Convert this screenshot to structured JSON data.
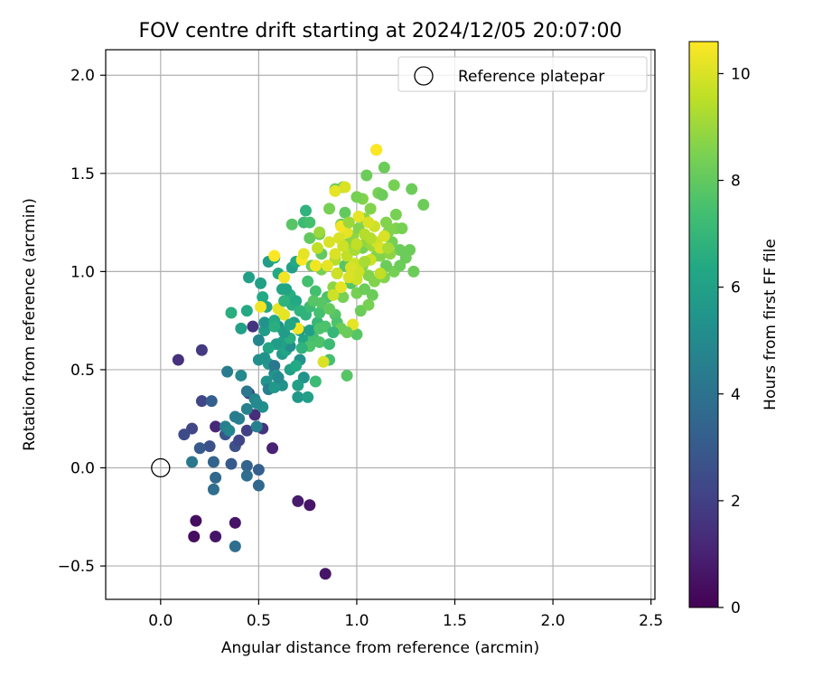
{
  "chart_data": {
    "type": "scatter",
    "title": "FOV centre drift starting at 2024/12/05 20:07:00",
    "xlabel": "Angular distance from reference (arcmin)",
    "ylabel": "Rotation from reference (arcmin)",
    "xlim": [
      -0.28,
      2.52
    ],
    "ylim": [
      -0.67,
      2.13
    ],
    "xticks": [
      0.0,
      0.5,
      1.0,
      1.5,
      2.0,
      2.5
    ],
    "xtick_labels": [
      "0.0",
      "0.5",
      "1.0",
      "1.5",
      "2.0",
      "2.5"
    ],
    "yticks": [
      -0.5,
      0.0,
      0.5,
      1.0,
      1.5,
      2.0
    ],
    "ytick_labels": [
      "−0.5",
      "0.0",
      "0.5",
      "1.0",
      "1.5",
      "2.0"
    ],
    "grid": true,
    "legend": {
      "placement": "top-right",
      "entries": [
        "Reference platepar"
      ]
    },
    "reference_point": {
      "x": 0.0,
      "y": 0.0,
      "marker": "open-circle"
    },
    "colorbar": {
      "label": "Hours from first FF file",
      "range": [
        0,
        10.6
      ],
      "ticks": [
        0,
        2,
        4,
        6,
        8,
        10
      ],
      "tick_labels": [
        "0",
        "2",
        "4",
        "6",
        "8",
        "10"
      ],
      "colormap": "viridis",
      "position": "right"
    },
    "series": [
      {
        "points": [
          [
            0.09,
            0.55,
            1.5
          ],
          [
            0.21,
            0.6,
            1.8
          ],
          [
            0.16,
            0.2,
            2.2
          ],
          [
            0.21,
            0.34,
            2.2
          ],
          [
            0.12,
            0.17,
            2.4
          ],
          [
            0.28,
            0.21,
            1.2
          ],
          [
            0.25,
            0.11,
            2.6
          ],
          [
            0.2,
            0.1,
            3.0
          ],
          [
            0.26,
            0.34,
            3.2
          ],
          [
            0.33,
            0.17,
            2.8
          ],
          [
            0.27,
            0.03,
            3.4
          ],
          [
            0.28,
            -0.05,
            3.6
          ],
          [
            0.27,
            -0.11,
            3.8
          ],
          [
            0.36,
            0.02,
            3.0
          ],
          [
            0.16,
            0.03,
            4.2
          ],
          [
            0.38,
            -0.4,
            3.8
          ],
          [
            0.38,
            0.11,
            2.6
          ],
          [
            0.4,
            0.14,
            2.2
          ],
          [
            0.44,
            0.01,
            3.4
          ],
          [
            0.44,
            -0.04,
            3.8
          ],
          [
            0.5,
            -0.01,
            3.2
          ],
          [
            0.5,
            -0.09,
            3.6
          ],
          [
            0.57,
            0.1,
            1.0
          ],
          [
            0.52,
            0.2,
            1.6
          ],
          [
            0.4,
            0.25,
            4.6
          ],
          [
            0.44,
            0.19,
            2.0
          ],
          [
            0.48,
            0.27,
            1.4
          ],
          [
            0.45,
            0.38,
            1.8
          ],
          [
            0.47,
            0.72,
            1.6
          ],
          [
            0.33,
            0.21,
            4.6
          ],
          [
            0.35,
            0.19,
            4.8
          ],
          [
            0.38,
            0.26,
            4.4
          ],
          [
            0.44,
            0.3,
            4.6
          ],
          [
            0.44,
            0.39,
            4.2
          ],
          [
            0.34,
            0.49,
            4.4
          ],
          [
            0.41,
            0.47,
            5.0
          ],
          [
            0.49,
            0.21,
            4.6
          ],
          [
            0.48,
            0.35,
            4.8
          ],
          [
            0.52,
            0.31,
            5.2
          ],
          [
            0.58,
            0.48,
            5.0
          ],
          [
            0.55,
            0.53,
            5.6
          ],
          [
            0.58,
            0.52,
            4.2
          ],
          [
            0.5,
            0.55,
            5.2
          ],
          [
            0.54,
            0.44,
            5.4
          ],
          [
            0.55,
            0.4,
            4.6
          ],
          [
            0.5,
            0.65,
            4.8
          ],
          [
            0.53,
            0.7,
            5.8
          ],
          [
            0.59,
            0.47,
            5.6
          ],
          [
            0.49,
            0.33,
            5.0
          ],
          [
            0.62,
            0.42,
            5.4
          ],
          [
            0.62,
            0.58,
            5.8
          ],
          [
            0.66,
            0.5,
            6.0
          ],
          [
            0.64,
            0.6,
            6.2
          ],
          [
            0.66,
            0.62,
            5.2
          ],
          [
            0.71,
            0.55,
            5.4
          ],
          [
            0.6,
            0.72,
            5.4
          ],
          [
            0.71,
            0.7,
            5.8
          ],
          [
            0.73,
            0.65,
            6.2
          ],
          [
            0.73,
            0.46,
            5.4
          ],
          [
            0.7,
            0.42,
            6.0
          ],
          [
            0.7,
            0.36,
            5.6
          ],
          [
            0.75,
            0.36,
            6.0
          ],
          [
            0.79,
            0.44,
            7.2
          ],
          [
            0.44,
            0.8,
            6.4
          ],
          [
            0.36,
            0.79,
            6.6
          ],
          [
            0.41,
            0.71,
            6.0
          ],
          [
            0.45,
            0.97,
            6.0
          ],
          [
            0.51,
            0.94,
            6.0
          ],
          [
            0.52,
            0.87,
            6.4
          ],
          [
            0.54,
            0.82,
            6.2
          ],
          [
            0.53,
            0.74,
            5.4
          ],
          [
            0.58,
            0.75,
            6.4
          ],
          [
            0.55,
            1.05,
            5.8
          ],
          [
            0.58,
            1.07,
            6.4
          ],
          [
            0.6,
            0.99,
            6.4
          ],
          [
            0.62,
            0.91,
            6.2
          ],
          [
            0.66,
            0.88,
            6.6
          ],
          [
            0.67,
            0.83,
            6.6
          ],
          [
            0.67,
            1.02,
            6.0
          ],
          [
            0.69,
            1.05,
            6.4
          ],
          [
            0.62,
            0.64,
            6.0
          ],
          [
            0.66,
            0.66,
            6.6
          ],
          [
            0.68,
            0.74,
            6.0
          ],
          [
            0.74,
            0.78,
            6.8
          ],
          [
            0.76,
            0.82,
            7.2
          ],
          [
            0.8,
            0.74,
            7.0
          ],
          [
            0.78,
            0.66,
            7.4
          ],
          [
            0.76,
            0.62,
            7.6
          ],
          [
            0.81,
            0.64,
            7.6
          ],
          [
            0.74,
            1.31,
            6.8
          ],
          [
            0.67,
            1.24,
            7.8
          ],
          [
            0.73,
            1.25,
            7.2
          ],
          [
            0.76,
            1.17,
            8.0
          ],
          [
            0.81,
            1.19,
            8.2
          ],
          [
            0.77,
            1.03,
            8.2
          ],
          [
            0.82,
            1.09,
            8.0
          ],
          [
            0.82,
            1.01,
            8.4
          ],
          [
            0.79,
            0.9,
            7.4
          ],
          [
            0.75,
            0.95,
            7.4
          ],
          [
            0.85,
            0.87,
            7.6
          ],
          [
            0.84,
            0.72,
            7.6
          ],
          [
            0.89,
            0.78,
            7.8
          ],
          [
            0.9,
            0.74,
            7.6
          ],
          [
            0.92,
            0.71,
            8.2
          ],
          [
            0.95,
            0.47,
            7.8
          ],
          [
            0.86,
            0.55,
            7.4
          ],
          [
            0.88,
            0.69,
            7.0
          ],
          [
            0.93,
            0.87,
            8.4
          ],
          [
            0.88,
            0.92,
            8.8
          ],
          [
            0.9,
            0.99,
            8.2
          ],
          [
            0.94,
            1.03,
            7.8
          ],
          [
            0.97,
            0.94,
            7.8
          ],
          [
            1.0,
            0.68,
            7.8
          ],
          [
            1.02,
            0.8,
            8.2
          ],
          [
            1.0,
            0.89,
            8.4
          ],
          [
            1.04,
            0.91,
            8.2
          ],
          [
            1.08,
            0.88,
            8.2
          ],
          [
            1.03,
            1.03,
            8.6
          ],
          [
            1.06,
            0.98,
            8.6
          ],
          [
            1.1,
            1.08,
            8.6
          ],
          [
            0.95,
            1.14,
            8.8
          ],
          [
            0.98,
            1.18,
            8.8
          ],
          [
            1.01,
            1.22,
            8.6
          ],
          [
            1.03,
            1.12,
            8.4
          ],
          [
            1.05,
            1.15,
            8.8
          ],
          [
            1.08,
            1.13,
            9.0
          ],
          [
            0.92,
            1.24,
            8.2
          ],
          [
            0.94,
            1.3,
            8.0
          ],
          [
            1.01,
            1.28,
            9.4
          ],
          [
            1.04,
            1.27,
            8.8
          ],
          [
            1.07,
            1.32,
            8.6
          ],
          [
            1.03,
            1.37,
            8.6
          ],
          [
            1.0,
            1.38,
            8.4
          ],
          [
            1.05,
            1.49,
            8.2
          ],
          [
            1.11,
            1.4,
            8.4
          ],
          [
            1.13,
            1.39,
            8.2
          ],
          [
            1.1,
            1.62,
            8.4
          ],
          [
            1.14,
            1.53,
            8.2
          ],
          [
            1.16,
            1.2,
            8.6
          ],
          [
            1.18,
            1.15,
            8.4
          ],
          [
            1.2,
            1.22,
            8.6
          ],
          [
            1.22,
            1.11,
            8.2
          ],
          [
            1.25,
            1.07,
            8.2
          ],
          [
            1.19,
            1.0,
            8.4
          ],
          [
            1.15,
            1.03,
            8.2
          ],
          [
            1.12,
            1.08,
            8.6
          ],
          [
            1.22,
            1.03,
            8.2
          ],
          [
            1.2,
            1.29,
            8.4
          ],
          [
            1.23,
            1.22,
            8.4
          ],
          [
            1.27,
            1.11,
            8.2
          ],
          [
            1.29,
            1.0,
            8.2
          ],
          [
            1.28,
            1.42,
            8.2
          ],
          [
            1.34,
            1.34,
            8.2
          ],
          [
            1.19,
            1.44,
            8.4
          ],
          [
            0.93,
            1.43,
            8.4
          ],
          [
            0.89,
            1.42,
            8.2
          ],
          [
            0.76,
            1.25,
            7.4
          ],
          [
            0.86,
            1.32,
            8.4
          ],
          [
            0.89,
            1.06,
            9.4
          ],
          [
            0.95,
            1.08,
            9.6
          ],
          [
            0.99,
            1.04,
            9.8
          ],
          [
            1.01,
            1.0,
            9.8
          ],
          [
            1.07,
            1.06,
            9.8
          ],
          [
            1.1,
            1.15,
            9.8
          ],
          [
            1.12,
            1.12,
            10.0
          ],
          [
            1.14,
            1.18,
            10.0
          ],
          [
            1.09,
            1.23,
            9.8
          ],
          [
            1.06,
            1.25,
            10.0
          ],
          [
            0.95,
            1.2,
            10.2
          ],
          [
            0.91,
            1.17,
            10.0
          ],
          [
            0.86,
            1.15,
            10.0
          ],
          [
            0.8,
            1.12,
            9.6
          ],
          [
            0.85,
            1.03,
            10.2
          ],
          [
            0.89,
            1.09,
            10.0
          ],
          [
            0.93,
            1.13,
            9.8
          ],
          [
            0.97,
            1.02,
            10.0
          ],
          [
            1.0,
            0.96,
            9.8
          ],
          [
            0.96,
            0.97,
            10.0
          ],
          [
            0.92,
            0.92,
            10.2
          ],
          [
            0.9,
            0.99,
            9.8
          ],
          [
            0.88,
            0.88,
            9.8
          ],
          [
            0.92,
            1.23,
            10.4
          ],
          [
            1.01,
            1.28,
            10.2
          ],
          [
            0.89,
            1.41,
            10.2
          ],
          [
            0.94,
            1.43,
            10.0
          ],
          [
            1.1,
            1.62,
            10.6
          ],
          [
            0.72,
            1.06,
            10.6
          ],
          [
            0.73,
            1.09,
            10.2
          ],
          [
            0.79,
            1.03,
            10.4
          ],
          [
            0.58,
            1.08,
            10.6
          ],
          [
            0.63,
            0.97,
            10.4
          ],
          [
            0.51,
            0.82,
            10.4
          ],
          [
            0.6,
            0.81,
            10.2
          ],
          [
            0.63,
            0.78,
            10.2
          ],
          [
            0.7,
            0.71,
            10.4
          ],
          [
            0.83,
            0.54,
            10.0
          ],
          [
            0.98,
            0.73,
            10.2
          ],
          [
            0.81,
            1.2,
            9.0
          ],
          [
            0.63,
            0.85,
            6.8
          ],
          [
            0.69,
            0.85,
            6.4
          ],
          [
            0.64,
            0.91,
            6.2
          ],
          [
            0.59,
            0.63,
            5.8
          ],
          [
            0.55,
            0.61,
            6.2
          ],
          [
            0.53,
            0.56,
            5.4
          ],
          [
            0.58,
            0.41,
            5.6
          ],
          [
            0.6,
            0.46,
            5.0
          ],
          [
            0.69,
            0.52,
            6.4
          ],
          [
            0.63,
            0.69,
            5.8
          ],
          [
            0.66,
            0.73,
            6.2
          ],
          [
            0.71,
            0.8,
            6.8
          ],
          [
            0.72,
            0.61,
            6.8
          ],
          [
            0.76,
            0.7,
            6.0
          ],
          [
            0.81,
            0.79,
            7.4
          ],
          [
            0.82,
            0.84,
            7.8
          ],
          [
            0.86,
            0.81,
            8.0
          ],
          [
            0.81,
            0.71,
            7.6
          ],
          [
            0.78,
            0.85,
            7.8
          ],
          [
            0.86,
            0.63,
            7.2
          ],
          [
            0.95,
            0.69,
            8.2
          ],
          [
            1.06,
            0.83,
            8.4
          ],
          [
            1.09,
            0.95,
            8.6
          ],
          [
            1.14,
            0.97,
            8.6
          ],
          [
            1.17,
            1.09,
            8.8
          ],
          [
            1.15,
            1.25,
            8.6
          ],
          [
            1.07,
            1.17,
            9.4
          ],
          [
            1.04,
            1.05,
            9.2
          ],
          [
            1.12,
            0.99,
            9.6
          ],
          [
            1.16,
            1.12,
            9.2
          ],
          [
            0.99,
            1.11,
            9.2
          ],
          [
            0.96,
            1.25,
            9.0
          ],
          [
            1.04,
            1.19,
            9.4
          ],
          [
            1.0,
            1.14,
            9.6
          ],
          [
            0.7,
            -0.17,
            0.8
          ],
          [
            0.76,
            -0.19,
            0.6
          ],
          [
            0.84,
            -0.54,
            0.6
          ],
          [
            0.18,
            -0.27,
            0.4
          ],
          [
            0.17,
            -0.35,
            0.4
          ],
          [
            0.28,
            -0.35,
            0.6
          ],
          [
            0.38,
            -0.28,
            0.6
          ],
          [
            0.58,
            0.72,
            6.6
          ]
        ]
      }
    ]
  }
}
